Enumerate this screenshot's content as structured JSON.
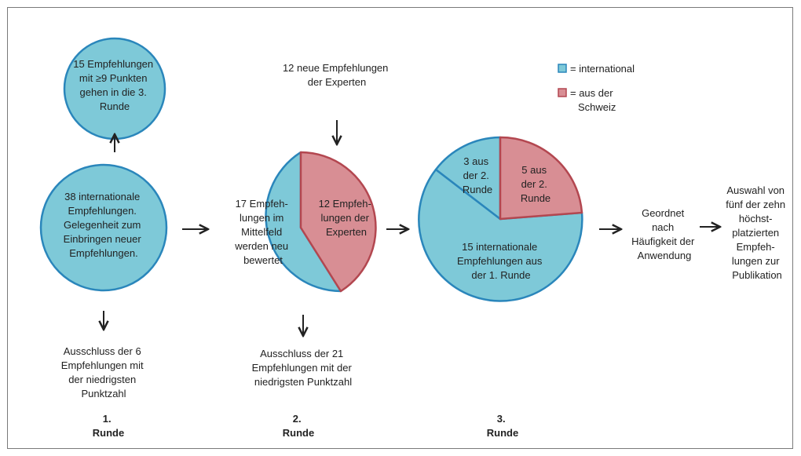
{
  "colors": {
    "international": "#7ec9d8",
    "international_border": "#2a86bb",
    "switzerland": "#d88e94",
    "switzerland_border": "#b34750",
    "text": "#222222"
  },
  "legend": {
    "international": "= international",
    "switzerland": [
      "= aus der",
      "Schweiz"
    ]
  },
  "round1": {
    "top_circle": [
      "15 Empfehlungen",
      "mit ≥9 Punkten",
      "gehen in die 3.",
      "Runde"
    ],
    "main_circle": [
      "38 internationale",
      "Empfehlungen.",
      "Gelegenheit zum",
      "Einbringen neuer",
      "Empfehlungen."
    ],
    "exclusion": [
      "Ausschluss der 6",
      "Empfehlungen mit",
      "der niedrigsten",
      "Punktzahl"
    ],
    "label": [
      "1.",
      "Runde"
    ]
  },
  "round2": {
    "experts_input": [
      "12 neue Empfehlungen",
      "der Experten"
    ],
    "slice_international": [
      "17 Empfeh-",
      "lungen im",
      "Mittelfeld",
      "werden neu",
      "bewertet"
    ],
    "slice_switzerland": [
      "12 Empfeh-",
      "lungen der",
      "Experten"
    ],
    "exclusion": [
      "Ausschluss der 21",
      "Empfehlungen mit der",
      "niedrigsten Punktzahl"
    ],
    "label": [
      "2.",
      "Runde"
    ]
  },
  "round3": {
    "slice_small_international": [
      "3 aus",
      "der 2.",
      "Runde"
    ],
    "slice_switzerland": [
      "5 aus",
      "der 2.",
      "Runde"
    ],
    "slice_large_international": [
      "15 internationale",
      "Empfehlungen aus",
      "der 1. Runde"
    ],
    "label": [
      "3.",
      "Runde"
    ]
  },
  "sorted": [
    "Geordnet",
    "nach",
    "Häufigkeit der",
    "Anwendung"
  ],
  "selection": [
    "Auswahl von",
    "fünf der zehn",
    "höchst-",
    "platzierten",
    "Empfeh-",
    "lungen zur",
    "Publikation"
  ]
}
